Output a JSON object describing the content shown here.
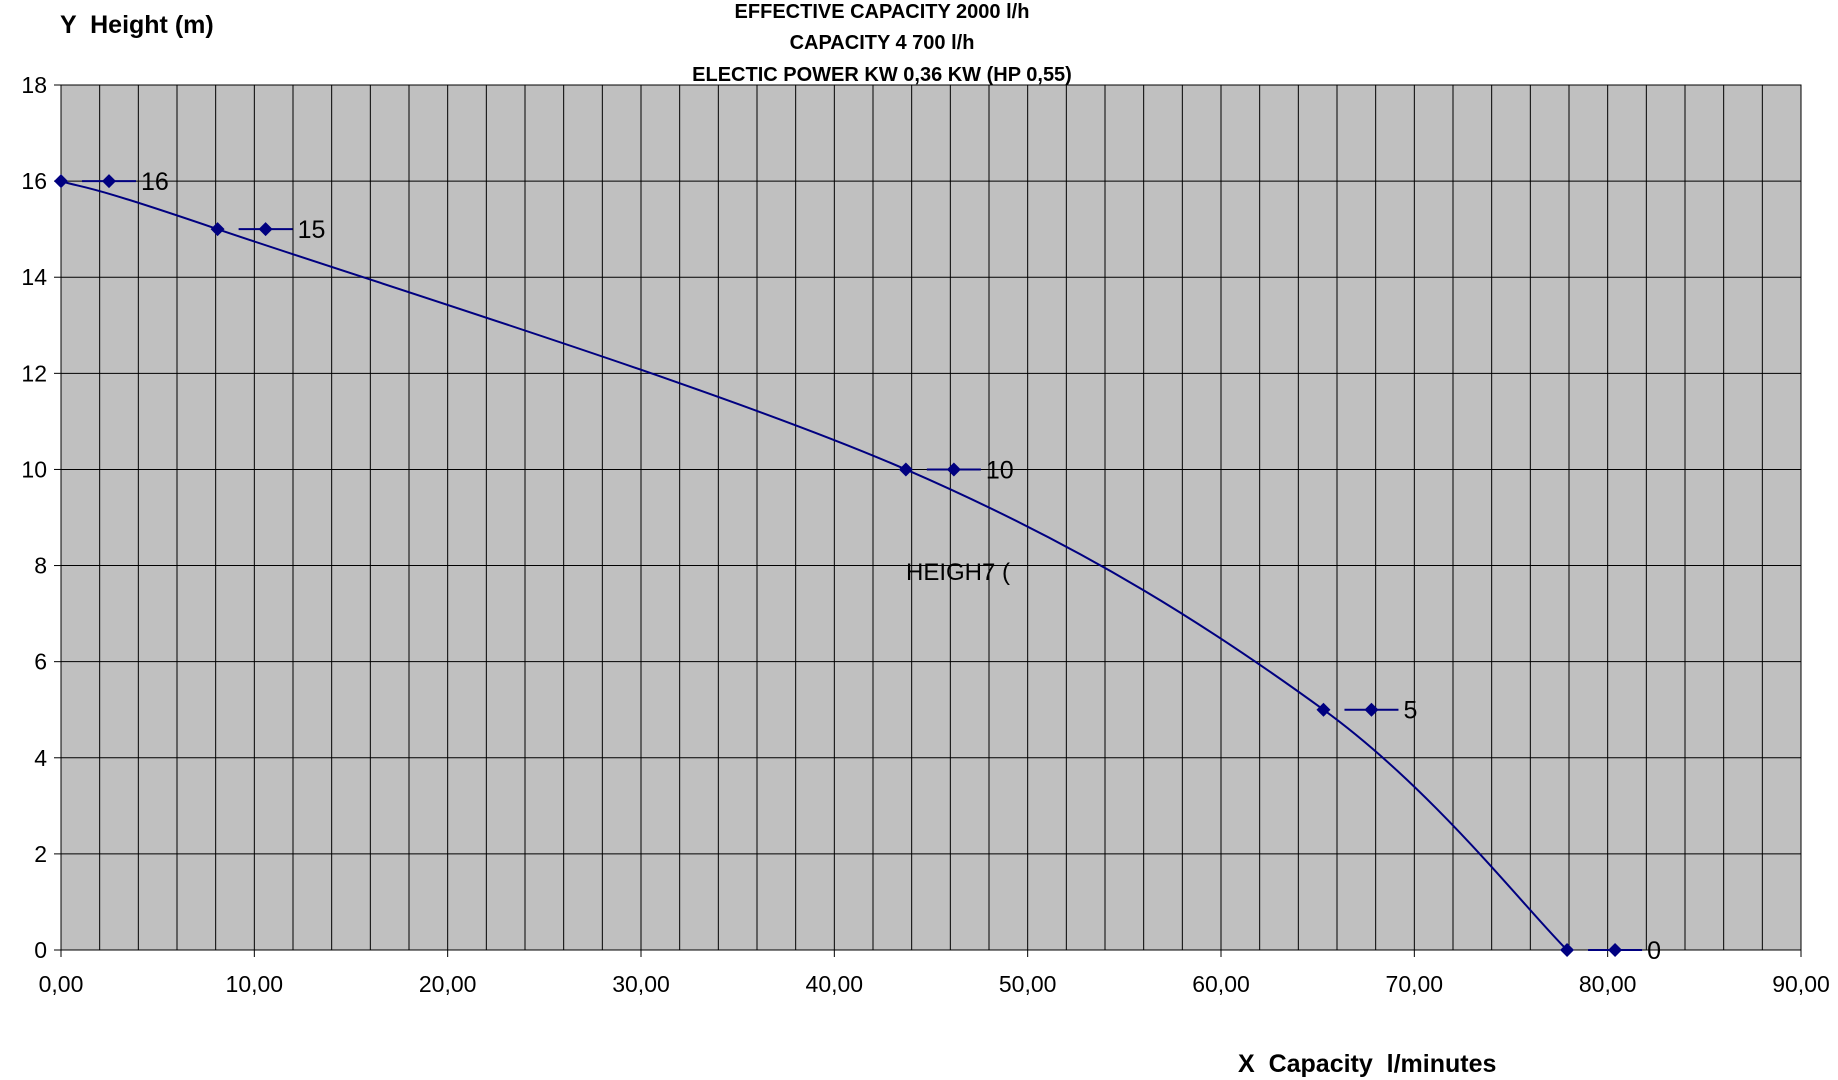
{
  "chart_data": {
    "type": "scatter",
    "title": [
      "EFFECTIVE CAPACITY 2000 l/h",
      "CAPACITY  4 700 l/h",
      "ELECTIC POWER  KW 0,36 KW (HP 0,55)"
    ],
    "xlabel": "X  Capacity  l/minutes",
    "ylabel": "Y  Height (m)",
    "xlim": [
      0,
      90
    ],
    "ylim": [
      0,
      18
    ],
    "x_ticks": [
      "0,00",
      "10,00",
      "20,00",
      "30,00",
      "40,00",
      "50,00",
      "60,00",
      "70,00",
      "80,00",
      "90,00"
    ],
    "y_ticks": [
      "0",
      "2",
      "4",
      "6",
      "8",
      "10",
      "12",
      "14",
      "16",
      "18"
    ],
    "grid": true,
    "plot_background": "#c0c0c0",
    "series": [
      {
        "color": "#000080",
        "smooth": true,
        "points": [
          {
            "x": 0,
            "y": 16
          },
          {
            "x": 8.1,
            "y": 15
          },
          {
            "x": 43.7,
            "y": 10
          },
          {
            "x": 65.3,
            "y": 5
          },
          {
            "x": 77.9,
            "y": 0
          }
        ]
      }
    ],
    "legend": {
      "placement": "inline",
      "entries": [
        "16",
        "15",
        "10",
        "5",
        "0"
      ]
    },
    "annotation": "HEIGH7 ("
  }
}
